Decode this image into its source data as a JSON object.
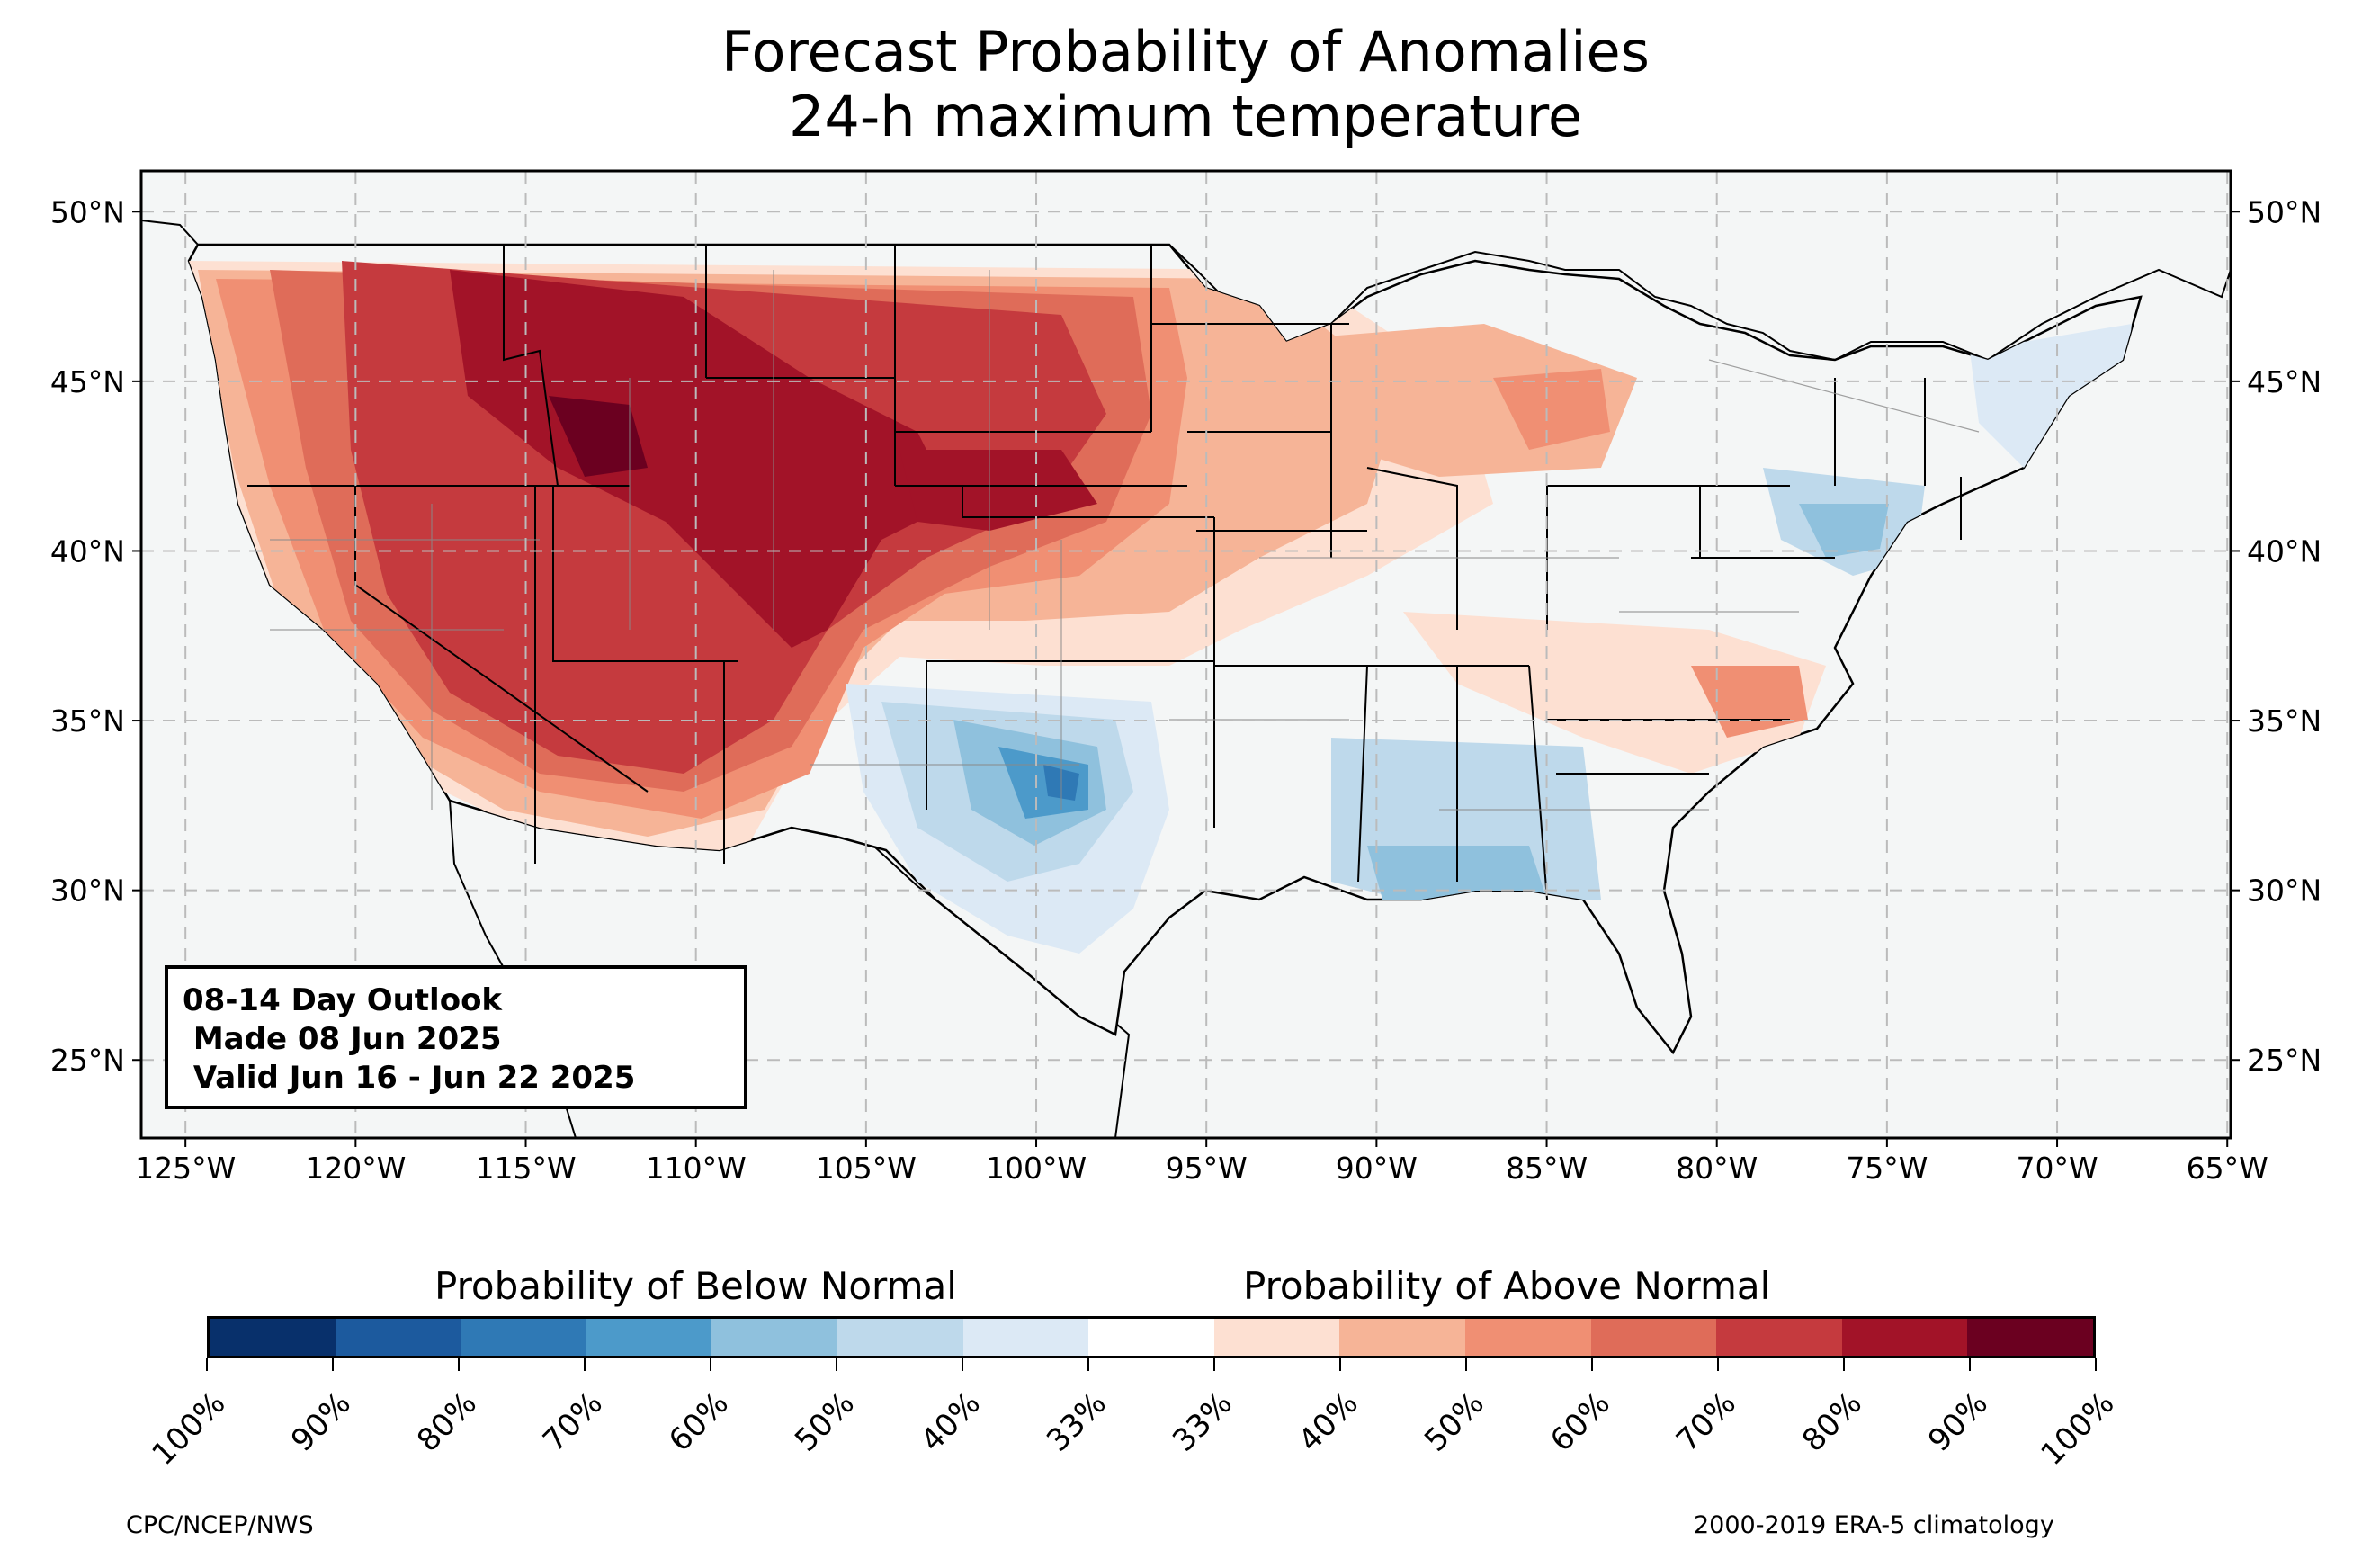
{
  "title": {
    "line1": "Forecast Probability of Anomalies",
    "line2": "24-h maximum temperature"
  },
  "map": {
    "lon_labels": [
      "125°W",
      "120°W",
      "115°W",
      "110°W",
      "105°W",
      "100°W",
      "95°W",
      "90°W",
      "85°W",
      "80°W",
      "75°W",
      "70°W",
      "65°W"
    ],
    "lat_labels": [
      "50°N",
      "45°N",
      "40°N",
      "35°N",
      "30°N",
      "25°N"
    ],
    "lon_range": [
      -126.3,
      -64.9
    ],
    "lat_range": [
      22.7,
      51.2
    ],
    "grid": "dashed",
    "ocean_color": "#f4f6f6",
    "state_border_color": "#000000",
    "county_border_color": "#888888"
  },
  "outlook_box": {
    "line1": "08-14 Day Outlook",
    "line2": " Made 08 Jun 2025",
    "line3": " Valid Jun 16 - Jun 22 2025"
  },
  "colorbar": {
    "below_label": "Probability of Below Normal",
    "above_label": "Probability of Above Normal",
    "tick_labels": [
      "100%",
      "90%",
      "80%",
      "70%",
      "60%",
      "50%",
      "40%",
      "33%",
      "33%",
      "40%",
      "50%",
      "60%",
      "70%",
      "80%",
      "90%",
      "100%"
    ],
    "colors": [
      "#08306b",
      "#1c5a9e",
      "#2f79b5",
      "#4c9aca",
      "#8fc1dd",
      "#bed9eb",
      "#dce9f5",
      "#ffffff",
      "#fde0d2",
      "#f6b497",
      "#f08f73",
      "#df6c59",
      "#c53a3e",
      "#a21328",
      "#6b0020"
    ]
  },
  "credits": {
    "left": "CPC/NCEP/NWS",
    "right": "2000-2019 ERA-5 climatology"
  }
}
